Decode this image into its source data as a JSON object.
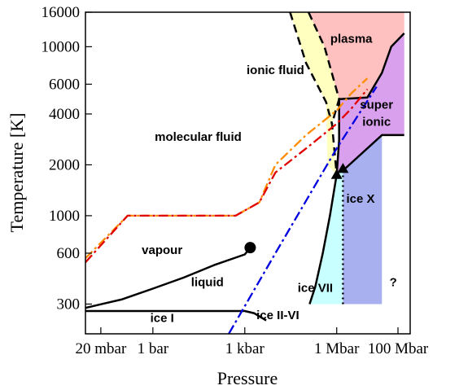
{
  "chart_data": {
    "type": "line",
    "title": "",
    "xlabel": "Pressure",
    "ylabel": "Temperature [K]",
    "x_scale": "log",
    "y_scale": "log",
    "x_unit": "bar",
    "y_unit": "K",
    "xlim": [
      0.0063,
      250000000
    ],
    "ylim": [
      200,
      16000
    ],
    "x_ticks": [
      {
        "value": 0.02,
        "label": "20 mbar"
      },
      {
        "value": 1,
        "label": "1 bar"
      },
      {
        "value": 1000,
        "label": "1 kbar"
      },
      {
        "value": 1000000,
        "label": "1 Mbar"
      },
      {
        "value": 100000000,
        "label": "100 Mbar"
      }
    ],
    "y_ticks": [
      {
        "value": 300,
        "label": "300"
      },
      {
        "value": 600,
        "label": "600"
      },
      {
        "value": 1000,
        "label": "1000"
      },
      {
        "value": 2000,
        "label": "2000"
      },
      {
        "value": 4000,
        "label": "4000"
      },
      {
        "value": 6000,
        "label": "6000"
      },
      {
        "value": 10000,
        "label": "10000"
      },
      {
        "value": 16000,
        "label": "16000"
      }
    ],
    "region_labels": [
      {
        "text": "plasma",
        "x": 3000000,
        "y": 11000
      },
      {
        "text": "ionic fluid",
        "x": 10000,
        "y": 7200
      },
      {
        "text": "super",
        "x": 20000000,
        "y": 4500
      },
      {
        "text": "ionic",
        "x": 20000000,
        "y": 3550
      },
      {
        "text": "molecular fluid",
        "x": 30,
        "y": 2900
      },
      {
        "text": "ice X",
        "x": 6000000,
        "y": 1250
      },
      {
        "text": "vapour",
        "x": 2,
        "y": 620
      },
      {
        "text": "liquid",
        "x": 60,
        "y": 400
      },
      {
        "text": "ice VII",
        "x": 200000,
        "y": 370
      },
      {
        "text": "?",
        "x": 70000000,
        "y": 400
      },
      {
        "text": "ice I",
        "x": 2,
        "y": 245
      },
      {
        "text": "ice II-VI",
        "x": 12000,
        "y": 255
      }
    ],
    "fill_regions": [
      {
        "name": "plasma",
        "color": "#ffc0c0",
        "points": [
          [
            500000,
            16000
          ],
          [
            160000000,
            16000
          ],
          [
            160000000,
            12000
          ],
          [
            60000000,
            10000
          ],
          [
            30000000,
            7000
          ],
          [
            10000000,
            5000
          ],
          [
            1200000,
            4900
          ],
          [
            400000,
            10000
          ],
          [
            120000,
            16000
          ]
        ]
      },
      {
        "name": "ionic fluid",
        "color": "#ffffc0",
        "points": [
          [
            120000,
            16000
          ],
          [
            400000,
            10000
          ],
          [
            1200000,
            4900
          ],
          [
            700000,
            3500
          ],
          [
            1000000,
            1750
          ],
          [
            500000,
            2000
          ],
          [
            450000,
            4700
          ],
          [
            100000,
            8000
          ],
          [
            30000,
            16000
          ]
        ]
      },
      {
        "name": "superionic",
        "color": "#d9a0ee",
        "points": [
          [
            1200000,
            4900
          ],
          [
            10000000,
            5000
          ],
          [
            30000000,
            7000
          ],
          [
            60000000,
            10000
          ],
          [
            160000000,
            12000
          ],
          [
            160000000,
            3000
          ],
          [
            30000000,
            3000
          ],
          [
            1600000,
            1850
          ],
          [
            1000000,
            1750
          ],
          [
            1200000,
            2800
          ]
        ]
      },
      {
        "name": "ice VII",
        "color": "#c8ffff",
        "points": [
          [
            130000,
            300
          ],
          [
            200000,
            380
          ],
          [
            350000,
            600
          ],
          [
            600000,
            1000
          ],
          [
            1000000,
            1750
          ],
          [
            1600000,
            1850
          ],
          [
            1600000,
            300
          ]
        ]
      },
      {
        "name": "ice X",
        "color": "#a8b0f0",
        "points": [
          [
            1600000,
            300
          ],
          [
            1600000,
            1850
          ],
          [
            30000000,
            3000
          ],
          [
            30000000,
            300
          ]
        ]
      }
    ],
    "series": [
      {
        "style": "solid-black",
        "color": "#000000",
        "points": [
          [
            0.0063,
            273
          ],
          [
            1000,
            273
          ],
          [
            2000,
            265
          ],
          [
            5000,
            240
          ]
        ]
      },
      {
        "style": "solid-black",
        "color": "#000000",
        "points": [
          [
            0.0063,
            285
          ],
          [
            0.1,
            320
          ],
          [
            1,
            370
          ],
          [
            10,
            430
          ],
          [
            100,
            510
          ],
          [
            1000,
            590
          ],
          [
            1500,
            647
          ]
        ]
      },
      {
        "style": "solid-black",
        "color": "#000000",
        "points": [
          [
            130000,
            300
          ],
          [
            200000,
            380
          ],
          [
            350000,
            600
          ],
          [
            600000,
            1000
          ],
          [
            1000000,
            1750
          ],
          [
            1200000,
            2800
          ],
          [
            1200000,
            4900
          ],
          [
            10000000,
            5000
          ],
          [
            30000000,
            7000
          ],
          [
            60000000,
            10000
          ],
          [
            160000000,
            12000
          ]
        ]
      },
      {
        "style": "solid-black",
        "color": "#000000",
        "points": [
          [
            1600000,
            1850
          ],
          [
            30000000,
            3000
          ],
          [
            160000000,
            3000
          ]
        ]
      },
      {
        "style": "dashed-black",
        "color": "#000000",
        "points": [
          [
            30000,
            16000
          ],
          [
            100000,
            8000
          ],
          [
            450000,
            4700
          ],
          [
            700000,
            3500
          ],
          [
            1000000,
            1750
          ]
        ]
      },
      {
        "style": "dashed-black",
        "color": "#000000",
        "points": [
          [
            120000,
            16000
          ],
          [
            400000,
            10000
          ],
          [
            1200000,
            4900
          ],
          [
            700000,
            3500
          ]
        ]
      },
      {
        "style": "dotted-black",
        "color": "#000000",
        "points": [
          [
            1600000,
            300
          ],
          [
            1600000,
            1850
          ]
        ]
      },
      {
        "style": "dash-dot",
        "color": "#ff8c00",
        "points": [
          [
            0.0063,
            560
          ],
          [
            0.15,
            1000
          ],
          [
            500,
            1000
          ],
          [
            3000,
            1200
          ],
          [
            10000,
            2000
          ],
          [
            100000,
            3000
          ],
          [
            1000000,
            4200
          ],
          [
            3000000,
            5300
          ],
          [
            10000000,
            6500
          ]
        ]
      },
      {
        "style": "dash-dot",
        "color": "#e00000",
        "points": [
          [
            0.0063,
            530
          ],
          [
            0.15,
            1000
          ],
          [
            500,
            1000
          ],
          [
            3000,
            1200
          ],
          [
            10000,
            1800
          ],
          [
            100000,
            2500
          ],
          [
            1000000,
            3500
          ],
          [
            3000000,
            4300
          ],
          [
            10000000,
            5600
          ]
        ]
      },
      {
        "style": "dash-dot",
        "color": "#0000e0",
        "points": [
          [
            300,
            200
          ],
          [
            10000,
            600
          ],
          [
            1000000,
            2500
          ],
          [
            20000000,
            5800
          ]
        ]
      }
    ],
    "markers": [
      {
        "shape": "circle",
        "x": 1500,
        "y": 647
      },
      {
        "shape": "triangle",
        "x": 1000000,
        "y": 1750
      },
      {
        "shape": "triangle",
        "x": 1600000,
        "y": 1900
      }
    ],
    "grid": false,
    "legend": "none"
  }
}
